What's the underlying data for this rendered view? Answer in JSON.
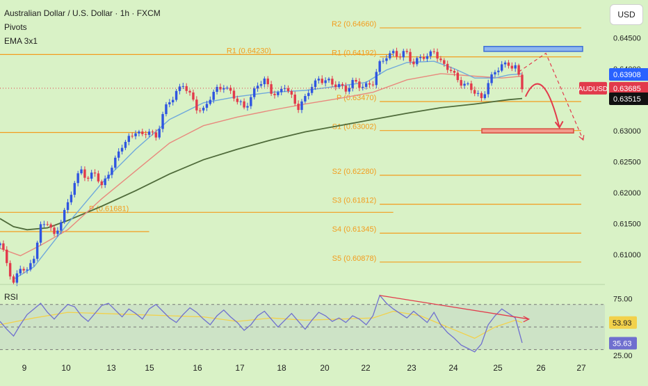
{
  "legend": {
    "title": "Australian Dollar / U.S. Dollar · 1h · FXCM",
    "pivots": "Pivots",
    "ema": "EMA 3x1",
    "rsi": "RSI"
  },
  "currency_button": "USD",
  "colors": {
    "background": "#d9f2c6",
    "candle_up": "#2f55e0",
    "candle_down": "#e23a4b",
    "pivot": "#f39c1d",
    "ema_fast": "#6fa8dc",
    "ema_mid": "#e8897d",
    "ema_slow": "#4f6b3a",
    "rsi_line": "#6f6fcf",
    "rsi_ma": "#f2d14b",
    "arrow": "#e23a4b",
    "resistance_box": "#8fb6ee",
    "support_box": "#f29c8c"
  },
  "chart_data": {
    "type": "line",
    "symbol": "AUDUSD",
    "x_tick_labels": [
      "9",
      "10",
      "13",
      "15",
      "16",
      "17",
      "18",
      "20",
      "22",
      "23",
      "24",
      "25",
      "26",
      "27"
    ],
    "price_axis": {
      "ticks": [
        "0.64500",
        "0.64000",
        "0.63500",
        "0.63000",
        "0.62500",
        "0.62000",
        "0.61500",
        "0.61000"
      ],
      "ylim": [
        0.6055,
        0.6502
      ]
    },
    "price_labels": [
      {
        "text": "0.63908",
        "value": 0.63908,
        "color": "#2962ff"
      },
      {
        "text": "0.63685",
        "value": 0.63685,
        "color": "#e23a4b",
        "tag": "AUDUSD"
      },
      {
        "text": "0.63515",
        "value": 0.63515,
        "color": "#111111"
      }
    ],
    "pivots_current": [
      {
        "label": "R2 (0.64660)",
        "value": 0.6466
      },
      {
        "label": "R1 (0.64192)",
        "value": 0.64192
      },
      {
        "label": "P (0.63470)",
        "value": 0.6347
      },
      {
        "label": "S1 (0.63002)",
        "value": 0.63002
      },
      {
        "label": "S2 (0.62280)",
        "value": 0.6228
      },
      {
        "label": "S3 (0.61812)",
        "value": 0.61812
      },
      {
        "label": "S4 (0.61345)",
        "value": 0.61345
      },
      {
        "label": "S5 (0.60878)",
        "value": 0.60878
      }
    ],
    "pivots_previous": [
      {
        "label": "R1 (0.64230)",
        "value": 0.6423
      },
      {
        "label": "P (0.61681)",
        "value": 0.61681
      }
    ],
    "close_path": [
      [
        0,
        0.6115
      ],
      [
        2,
        0.6088
      ],
      [
        4,
        0.6055
      ],
      [
        6,
        0.6078
      ],
      [
        8,
        0.607
      ],
      [
        10,
        0.61
      ],
      [
        12,
        0.6145
      ],
      [
        14,
        0.615
      ],
      [
        16,
        0.613
      ],
      [
        18,
        0.6158
      ],
      [
        20,
        0.618
      ],
      [
        22,
        0.6215
      ],
      [
        24,
        0.624
      ],
      [
        26,
        0.6222
      ],
      [
        28,
        0.623
      ],
      [
        30,
        0.621
      ],
      [
        32,
        0.6235
      ],
      [
        34,
        0.625
      ],
      [
        36,
        0.6275
      ],
      [
        38,
        0.629
      ],
      [
        40,
        0.63
      ],
      [
        42,
        0.6288
      ],
      [
        44,
        0.6302
      ],
      [
        46,
        0.629
      ],
      [
        48,
        0.6325
      ],
      [
        50,
        0.6345
      ],
      [
        52,
        0.6365
      ],
      [
        54,
        0.6375
      ],
      [
        56,
        0.6355
      ],
      [
        58,
        0.6338
      ],
      [
        60,
        0.6335
      ],
      [
        62,
        0.6352
      ],
      [
        64,
        0.6365
      ],
      [
        66,
        0.6375
      ],
      [
        68,
        0.6362
      ],
      [
        70,
        0.6345
      ],
      [
        72,
        0.6338
      ],
      [
        74,
        0.6356
      ],
      [
        76,
        0.6372
      ],
      [
        78,
        0.638
      ],
      [
        80,
        0.6366
      ],
      [
        82,
        0.6358
      ],
      [
        84,
        0.637
      ],
      [
        86,
        0.6355
      ],
      [
        88,
        0.634
      ],
      [
        90,
        0.635
      ],
      [
        92,
        0.6372
      ],
      [
        94,
        0.6385
      ],
      [
        96,
        0.6382
      ],
      [
        98,
        0.6372
      ],
      [
        100,
        0.6375
      ],
      [
        102,
        0.6368
      ],
      [
        104,
        0.6376
      ],
      [
        106,
        0.6372
      ],
      [
        108,
        0.6375
      ],
      [
        110,
        0.6378
      ],
      [
        112,
        0.6405
      ],
      [
        114,
        0.6422
      ],
      [
        116,
        0.6428
      ],
      [
        118,
        0.6418
      ],
      [
        120,
        0.6425
      ],
      [
        122,
        0.641
      ],
      [
        124,
        0.642
      ],
      [
        126,
        0.6415
      ],
      [
        128,
        0.6432
      ],
      [
        130,
        0.6412
      ],
      [
        132,
        0.64
      ],
      [
        134,
        0.6388
      ],
      [
        136,
        0.638
      ],
      [
        138,
        0.6372
      ],
      [
        140,
        0.636
      ],
      [
        142,
        0.6352
      ],
      [
        144,
        0.638
      ],
      [
        146,
        0.6392
      ],
      [
        148,
        0.6405
      ],
      [
        150,
        0.641
      ],
      [
        152,
        0.6402
      ],
      [
        154,
        0.6368
      ]
    ],
    "ema_fast": [
      [
        4,
        0.606
      ],
      [
        10,
        0.608
      ],
      [
        20,
        0.615
      ],
      [
        30,
        0.6215
      ],
      [
        40,
        0.627
      ],
      [
        50,
        0.6318
      ],
      [
        60,
        0.6345
      ],
      [
        70,
        0.6355
      ],
      [
        80,
        0.6362
      ],
      [
        90,
        0.6365
      ],
      [
        100,
        0.6372
      ],
      [
        108,
        0.6378
      ],
      [
        114,
        0.6398
      ],
      [
        120,
        0.641
      ],
      [
        128,
        0.6412
      ],
      [
        134,
        0.64
      ],
      [
        140,
        0.6385
      ],
      [
        146,
        0.6385
      ],
      [
        150,
        0.639
      ],
      [
        154,
        0.6392
      ]
    ],
    "ema_mid": [
      [
        0,
        0.611
      ],
      [
        6,
        0.6098
      ],
      [
        12,
        0.6115
      ],
      [
        20,
        0.614
      ],
      [
        30,
        0.619
      ],
      [
        40,
        0.6235
      ],
      [
        50,
        0.628
      ],
      [
        60,
        0.6308
      ],
      [
        70,
        0.6322
      ],
      [
        80,
        0.6333
      ],
      [
        90,
        0.6343
      ],
      [
        100,
        0.6352
      ],
      [
        110,
        0.6362
      ],
      [
        120,
        0.6382
      ],
      [
        130,
        0.6392
      ],
      [
        140,
        0.6388
      ],
      [
        148,
        0.6385
      ],
      [
        154,
        0.6388
      ]
    ],
    "ema_slow": [
      [
        0,
        0.6158
      ],
      [
        4,
        0.6145
      ],
      [
        8,
        0.614
      ],
      [
        14,
        0.6143
      ],
      [
        20,
        0.6155
      ],
      [
        30,
        0.6178
      ],
      [
        40,
        0.6203
      ],
      [
        50,
        0.623
      ],
      [
        60,
        0.6253
      ],
      [
        70,
        0.627
      ],
      [
        80,
        0.6285
      ],
      [
        90,
        0.6298
      ],
      [
        100,
        0.6308
      ],
      [
        110,
        0.6318
      ],
      [
        120,
        0.6328
      ],
      [
        130,
        0.6337
      ],
      [
        140,
        0.6343
      ],
      [
        150,
        0.635
      ],
      [
        154,
        0.6352
      ]
    ],
    "projection": {
      "resistance_zone": [
        0.6428,
        0.6436
      ],
      "support_zone": [
        0.6297,
        0.6303
      ],
      "solid_arrow": [
        [
          155,
          0.6355
        ],
        [
          160,
          0.638
        ],
        [
          165,
          0.6305
        ]
      ],
      "dashed_arrow": [
        [
          153,
          0.6395
        ],
        [
          161,
          0.6425
        ],
        [
          172,
          0.6285
        ]
      ]
    },
    "rsi": {
      "ticks": [
        "75.00",
        "25.00"
      ],
      "labels": [
        {
          "text": "53.93",
          "value": 53.93,
          "color": "#f2d14b"
        },
        {
          "text": "35.63",
          "value": 35.63,
          "color": "#6f6fcf"
        }
      ],
      "ylim": [
        23,
        84
      ],
      "levels": [
        70,
        50,
        30
      ],
      "values": [
        [
          0,
          55
        ],
        [
          2,
          48
        ],
        [
          4,
          42
        ],
        [
          6,
          52
        ],
        [
          8,
          61
        ],
        [
          10,
          66
        ],
        [
          12,
          71
        ],
        [
          14,
          63
        ],
        [
          16,
          57
        ],
        [
          18,
          64
        ],
        [
          20,
          70
        ],
        [
          22,
          68
        ],
        [
          24,
          60
        ],
        [
          26,
          55
        ],
        [
          28,
          62
        ],
        [
          30,
          69
        ],
        [
          32,
          71
        ],
        [
          34,
          65
        ],
        [
          36,
          59
        ],
        [
          38,
          66
        ],
        [
          40,
          62
        ],
        [
          42,
          57
        ],
        [
          44,
          66
        ],
        [
          46,
          70
        ],
        [
          48,
          64
        ],
        [
          50,
          58
        ],
        [
          52,
          54
        ],
        [
          54,
          61
        ],
        [
          56,
          67
        ],
        [
          58,
          63
        ],
        [
          60,
          57
        ],
        [
          62,
          52
        ],
        [
          64,
          60
        ],
        [
          66,
          65
        ],
        [
          68,
          59
        ],
        [
          70,
          54
        ],
        [
          72,
          47
        ],
        [
          74,
          52
        ],
        [
          76,
          60
        ],
        [
          78,
          64
        ],
        [
          80,
          57
        ],
        [
          82,
          50
        ],
        [
          84,
          56
        ],
        [
          86,
          62
        ],
        [
          88,
          55
        ],
        [
          90,
          48
        ],
        [
          92,
          56
        ],
        [
          94,
          63
        ],
        [
          96,
          60
        ],
        [
          98,
          55
        ],
        [
          100,
          58
        ],
        [
          102,
          54
        ],
        [
          104,
          60
        ],
        [
          106,
          57
        ],
        [
          108,
          52
        ],
        [
          110,
          60
        ],
        [
          112,
          78
        ],
        [
          114,
          71
        ],
        [
          116,
          66
        ],
        [
          118,
          62
        ],
        [
          120,
          58
        ],
        [
          122,
          64
        ],
        [
          124,
          59
        ],
        [
          126,
          54
        ],
        [
          128,
          63
        ],
        [
          130,
          52
        ],
        [
          132,
          45
        ],
        [
          134,
          40
        ],
        [
          136,
          34
        ],
        [
          138,
          31
        ],
        [
          140,
          28
        ],
        [
          142,
          35
        ],
        [
          144,
          52
        ],
        [
          146,
          60
        ],
        [
          148,
          66
        ],
        [
          150,
          62
        ],
        [
          152,
          58
        ],
        [
          154,
          36
        ]
      ],
      "ma": [
        [
          0,
          52
        ],
        [
          10,
          58
        ],
        [
          20,
          63
        ],
        [
          30,
          62
        ],
        [
          40,
          61
        ],
        [
          50,
          60
        ],
        [
          60,
          59
        ],
        [
          70,
          55
        ],
        [
          80,
          58
        ],
        [
          90,
          56
        ],
        [
          100,
          57
        ],
        [
          110,
          58
        ],
        [
          116,
          64
        ],
        [
          124,
          60
        ],
        [
          132,
          50
        ],
        [
          140,
          40
        ],
        [
          146,
          50
        ],
        [
          152,
          56
        ],
        [
          154,
          54
        ]
      ],
      "divergence_line": [
        [
          112,
          78
        ],
        [
          156,
          57
        ]
      ]
    }
  }
}
